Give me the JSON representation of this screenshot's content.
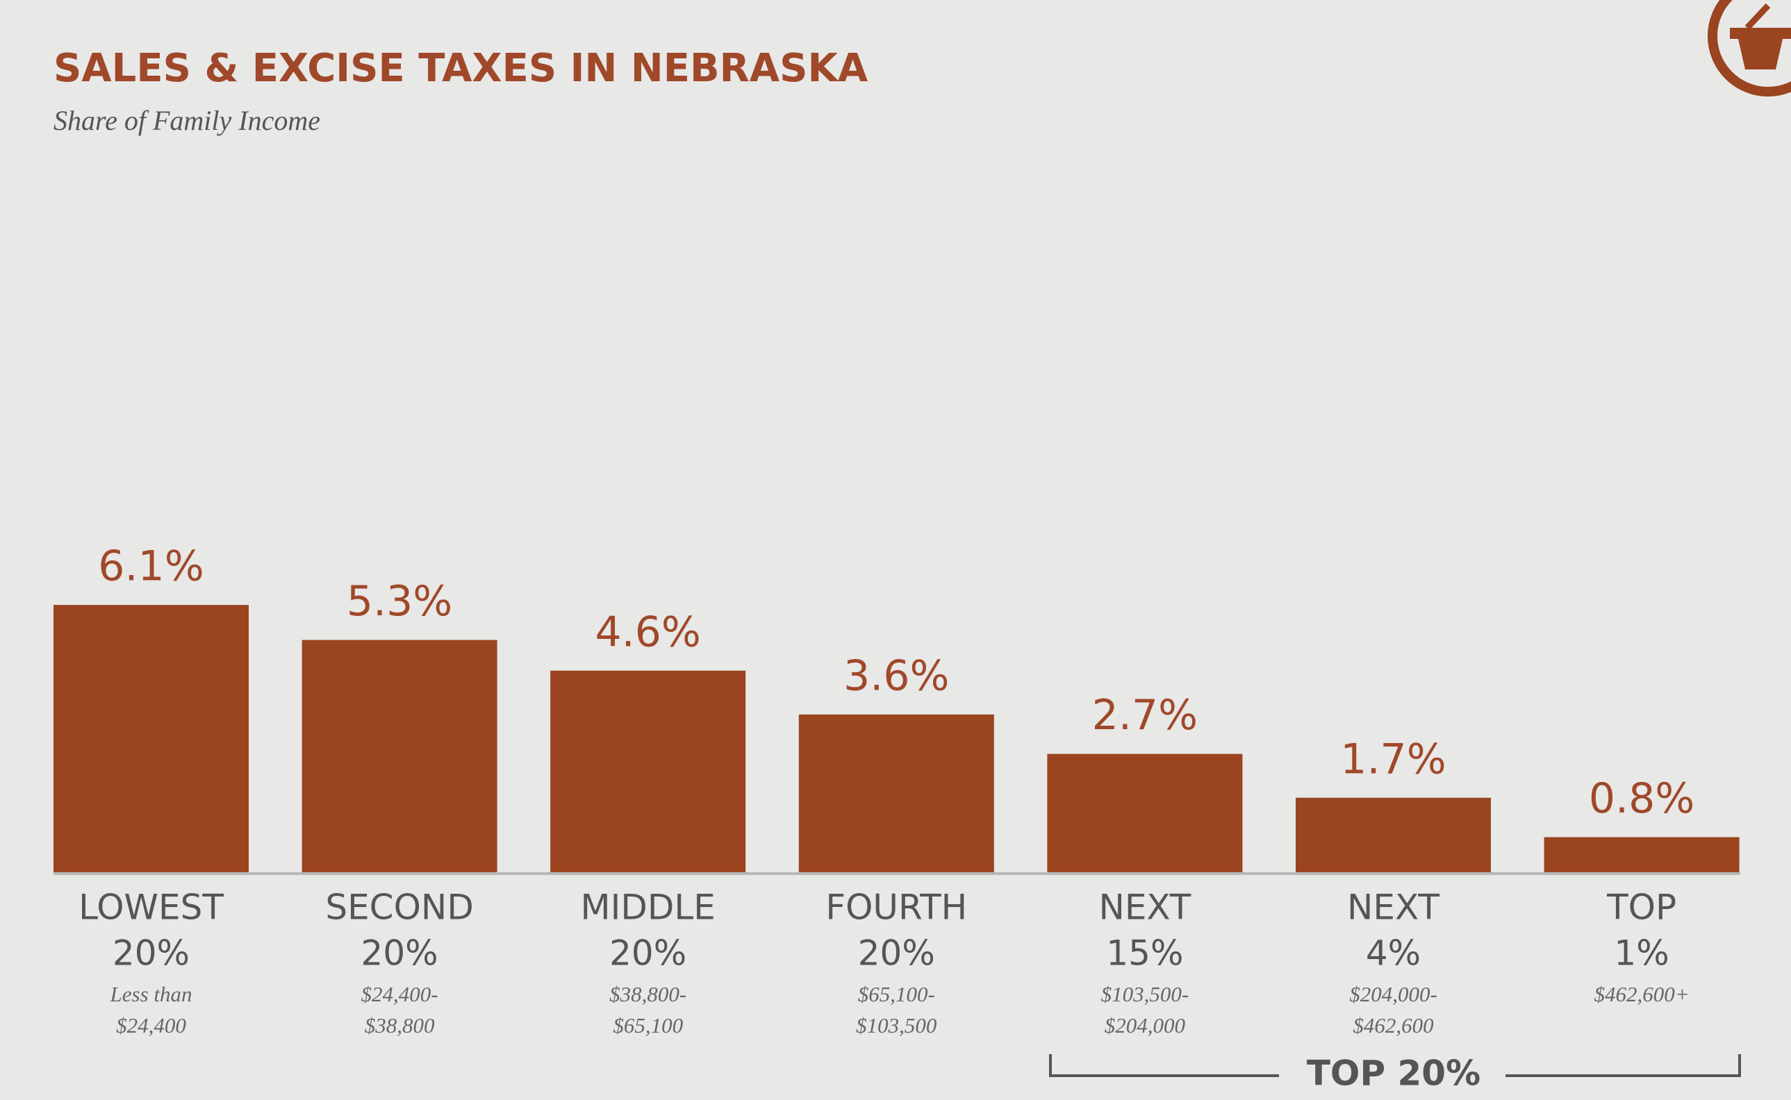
{
  "chart_data": {
    "type": "bar",
    "title": "SALES & EXCISE TAXES IN NEBRASKA",
    "subtitle": "Share of Family Income",
    "categories": [
      [
        "LOWEST",
        "20%"
      ],
      [
        "SECOND",
        "20%"
      ],
      [
        "MIDDLE",
        "20%"
      ],
      [
        "FOURTH",
        "20%"
      ],
      [
        "NEXT",
        "15%"
      ],
      [
        "NEXT",
        "4%"
      ],
      [
        "TOP",
        "1%"
      ]
    ],
    "income_ranges": [
      [
        "Less than",
        "$24,400"
      ],
      [
        "$24,400-",
        "$38,800"
      ],
      [
        "$38,800-",
        "$65,100"
      ],
      [
        "$65,100-",
        "$103,500"
      ],
      [
        "$103,500-",
        "$204,000"
      ],
      [
        "$204,000-",
        "$462,600"
      ],
      [
        "$462,600+"
      ]
    ],
    "values": [
      6.1,
      5.3,
      4.6,
      3.6,
      2.7,
      1.7,
      0.8
    ],
    "value_labels": [
      "6.1%",
      "5.3%",
      "4.6%",
      "3.6%",
      "2.7%",
      "1.7%",
      "0.8%"
    ],
    "color": "#9a4420",
    "bracket_label": "TOP 20%"
  }
}
